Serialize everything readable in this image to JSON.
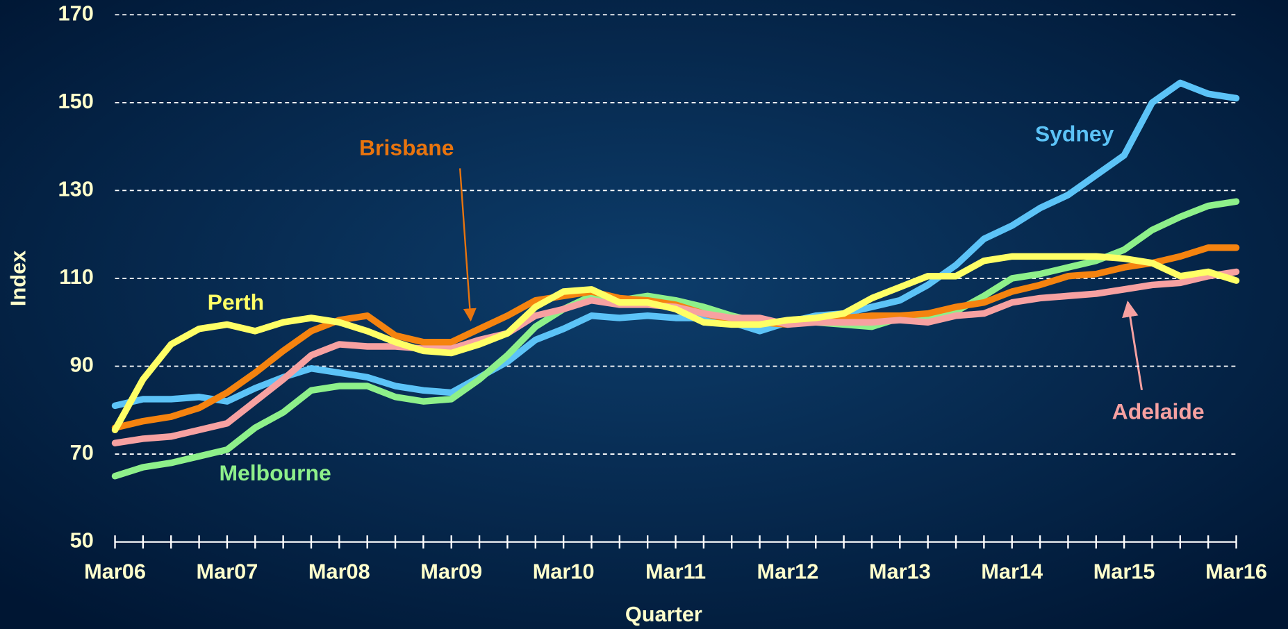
{
  "chart_data": {
    "type": "line",
    "x_label": "Quarter",
    "y_label": "Index",
    "categories": [
      "Mar06",
      null,
      null,
      null,
      "Mar07",
      null,
      null,
      null,
      "Mar08",
      null,
      null,
      null,
      "Mar09",
      null,
      null,
      null,
      "Mar10",
      null,
      null,
      null,
      "Mar11",
      null,
      null,
      null,
      "Mar12",
      null,
      null,
      null,
      "Mar13",
      null,
      null,
      null,
      "Mar14",
      null,
      null,
      null,
      "Mar15",
      null,
      null,
      null,
      "Mar16"
    ],
    "ylim": [
      50,
      170
    ],
    "yticks": [
      50,
      70,
      90,
      110,
      130,
      150,
      170
    ],
    "grid": true,
    "series": [
      {
        "name": "Sydney",
        "color": "#5cc3f7",
        "values": [
          81,
          82.5,
          82.5,
          83,
          82,
          85,
          87.5,
          89.5,
          88.5,
          87.5,
          85.5,
          84.5,
          84,
          87.5,
          91,
          96,
          98.5,
          101.5,
          101,
          101.5,
          101,
          101,
          100,
          98,
          100,
          101.5,
          102,
          103.5,
          105,
          108.5,
          113,
          119,
          122,
          126,
          129,
          133.5,
          138,
          150,
          154.5,
          152,
          151
        ]
      },
      {
        "name": "Melbourne",
        "color": "#8ef08a",
        "values": [
          65,
          67,
          68,
          69.5,
          71,
          76,
          79.5,
          84.5,
          85.5,
          85.5,
          83,
          82,
          82.5,
          87,
          92.5,
          99,
          103,
          106,
          105,
          106,
          105,
          103.5,
          101.5,
          100,
          100,
          100,
          99.5,
          99,
          101,
          101,
          102.5,
          106,
          110,
          111,
          112.5,
          114,
          116.5,
          121,
          124,
          126.5,
          127.5
        ]
      },
      {
        "name": "Brisbane",
        "color": "#f5830f",
        "values": [
          76,
          77.5,
          78.5,
          80.5,
          84,
          88.5,
          93.5,
          98,
          100.5,
          101.5,
          97,
          95.5,
          95.5,
          98.5,
          101.5,
          105,
          106,
          107,
          105.5,
          105,
          104,
          102,
          100.5,
          100,
          99.5,
          100.5,
          101,
          101.5,
          101.5,
          102,
          103.5,
          104.5,
          107,
          108.5,
          110.5,
          111,
          112.5,
          113.5,
          115,
          117,
          117
        ]
      },
      {
        "name": "Adelaide",
        "color": "#f7a1a1",
        "values": [
          72.5,
          73.5,
          74,
          75.5,
          77,
          82,
          87,
          92.5,
          95,
          94.5,
          94.5,
          94,
          94,
          96,
          97.5,
          101.5,
          103,
          105,
          104,
          104,
          103.5,
          102,
          101,
          101,
          99.5,
          100,
          100,
          100,
          100.5,
          100,
          101.5,
          102,
          104.5,
          105.5,
          106,
          106.5,
          107.5,
          108.5,
          109,
          110.5,
          111.5
        ]
      },
      {
        "name": "Perth",
        "color": "#ffff66",
        "values": [
          75.5,
          87,
          95,
          98.5,
          99.5,
          98,
          100,
          101,
          100,
          98,
          95.5,
          93.5,
          93,
          95,
          97.5,
          103.5,
          107,
          107.5,
          104.5,
          104.5,
          103,
          100,
          99.5,
          99.5,
          100.5,
          101,
          102,
          105.5,
          108,
          110.5,
          110.5,
          114,
          115,
          115,
          115,
          115,
          114.5,
          113.5,
          110.5,
          111.5,
          109.5
        ]
      }
    ]
  }
}
